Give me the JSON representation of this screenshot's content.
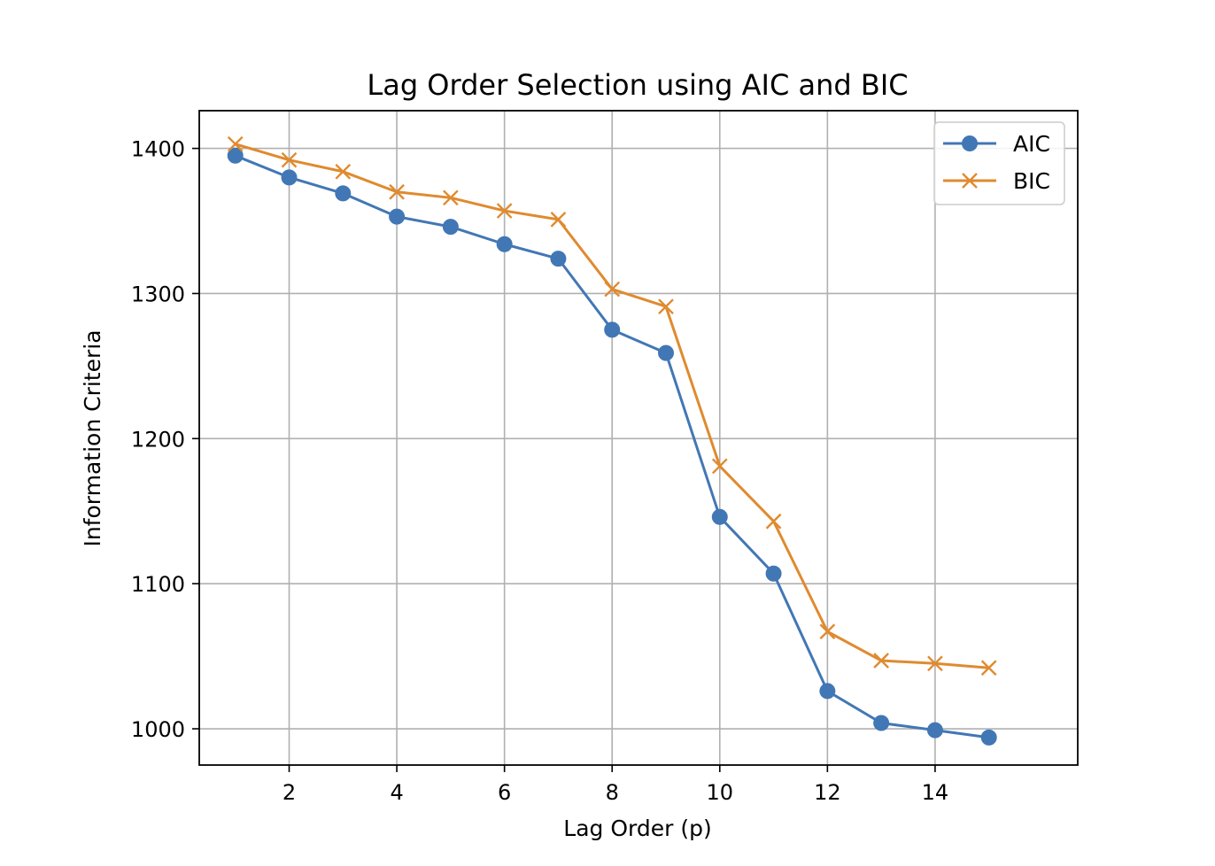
{
  "chart_data": {
    "type": "line",
    "title": "Lag Order Selection using AIC and BIC",
    "xlabel": "Lag Order (p)",
    "ylabel": "Information Criteria",
    "x": [
      1,
      2,
      3,
      4,
      5,
      6,
      7,
      8,
      9,
      10,
      11,
      12,
      13,
      14,
      15
    ],
    "xlim": [
      0.33,
      16.65
    ],
    "ylim": [
      975,
      1426
    ],
    "xticks": [
      2,
      4,
      6,
      8,
      10,
      12,
      14
    ],
    "xtick_labels": [
      "2",
      "4",
      "6",
      "8",
      "10",
      "12",
      "14"
    ],
    "yticks": [
      1000,
      1100,
      1200,
      1300,
      1400
    ],
    "ytick_labels": [
      "1000",
      "1100",
      "1200",
      "1300",
      "1400"
    ],
    "grid": true,
    "legend_position": "top-right",
    "series": [
      {
        "name": "AIC",
        "marker": "circle",
        "color": "#4277b5",
        "values": [
          1395,
          1380,
          1369,
          1353,
          1346,
          1334,
          1324,
          1275,
          1259,
          1146,
          1107,
          1026,
          1004,
          999,
          994
        ]
      },
      {
        "name": "BIC",
        "marker": "x",
        "color": "#e08a2f",
        "values": [
          1403,
          1392,
          1384,
          1370,
          1366,
          1357,
          1351,
          1303,
          1291,
          1181,
          1143,
          1067,
          1047,
          1045,
          1042
        ]
      }
    ]
  }
}
